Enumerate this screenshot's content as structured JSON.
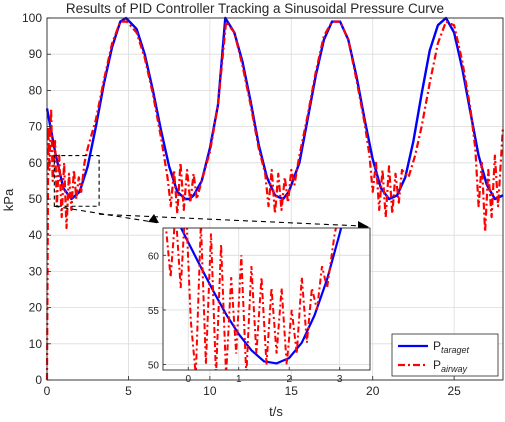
{
  "chart_data": {
    "type": "line",
    "title": "Results of PID Controller Tracking a Sinusoidal Pressure Curve",
    "xlabel": "t/s",
    "ylabel": "kPa",
    "xlim": [
      0,
      28
    ],
    "ylim": [
      0,
      100
    ],
    "xticks": [
      "0",
      "5",
      "10",
      "15",
      "20",
      "25"
    ],
    "yticks": [
      "0",
      "10",
      "20",
      "30",
      "40",
      "50",
      "60",
      "70",
      "80",
      "90",
      "100"
    ],
    "grid": true,
    "legend_position": "bottom-right",
    "series": [
      {
        "name": "P_taraget",
        "legend_main": "P",
        "legend_sub": "taraget",
        "color": "#0000ff",
        "style": "solid",
        "x": [
          0,
          0.5,
          1,
          1.5,
          2,
          2.5,
          3,
          3.5,
          4,
          4.5,
          4.85,
          5.5,
          6,
          6.5,
          7,
          7.5,
          8,
          8.5,
          8.75,
          9,
          9.5,
          10,
          10.5,
          10.95,
          11.5,
          12,
          12.5,
          13,
          13.5,
          14,
          14.5,
          14.85,
          15.5,
          16,
          16.5,
          17,
          17.5,
          18,
          18.5,
          19,
          19.5,
          20,
          20.5,
          21,
          21.5,
          22,
          22.5,
          23,
          23.5,
          24,
          24.5,
          25,
          25.5,
          26,
          26.5,
          27,
          27.5,
          28
        ],
        "y": [
          75,
          63,
          53,
          50,
          52,
          59,
          70,
          82,
          92,
          99,
          100,
          97,
          90,
          80,
          69,
          59,
          52,
          50,
          50,
          51,
          55,
          64,
          76,
          100,
          96,
          88,
          77,
          65,
          56,
          51,
          50,
          52,
          60,
          72,
          84,
          94,
          99,
          99,
          94,
          84,
          72,
          61,
          53,
          50,
          51,
          56,
          66,
          79,
          91,
          98,
          100,
          96,
          86,
          74,
          62,
          54,
          50,
          51
        ]
      },
      {
        "name": "P_airway",
        "legend_main": "P",
        "legend_sub": "airway",
        "color": "#ff0000",
        "style": "dashdot",
        "x": [
          0,
          0.08,
          0.15,
          0.25,
          0.35,
          0.5,
          0.6,
          0.75,
          0.9,
          1.05,
          1.2,
          1.35,
          1.5,
          1.65,
          1.8,
          1.95,
          2.1,
          2.3,
          2.5,
          3,
          3.5,
          4,
          4.5,
          4.9,
          5.5,
          6,
          6.5,
          7,
          7.4,
          7.6,
          7.8,
          8.0,
          8.2,
          8.4,
          8.6,
          8.8,
          9.0,
          9.2,
          9.5,
          10,
          10.5,
          11,
          11.5,
          12,
          12.5,
          13,
          13.4,
          13.6,
          13.8,
          14.0,
          14.2,
          14.4,
          14.6,
          14.8,
          15.0,
          15.2,
          15.5,
          16,
          16.5,
          17,
          17.5,
          18,
          18.5,
          19,
          19.5,
          19.8,
          20.0,
          20.2,
          20.4,
          20.6,
          20.8,
          21.0,
          21.2,
          21.4,
          21.6,
          21.8,
          22.2,
          22.6,
          23,
          23.5,
          24,
          24.5,
          25,
          25.5,
          26,
          26.3,
          26.5,
          26.7,
          26.9,
          27.1,
          27.3,
          27.5,
          27.7,
          28
        ],
        "y": [
          0,
          70,
          58,
          75,
          55,
          66,
          48,
          62,
          45,
          60,
          42,
          57,
          47,
          58,
          50,
          56,
          52,
          60,
          64,
          72,
          83,
          93,
          99,
          99,
          96,
          89,
          79,
          67,
          56,
          48,
          58,
          46,
          60,
          47,
          58,
          49,
          57,
          50,
          55,
          63,
          76,
          99,
          96,
          87,
          76,
          64,
          57,
          48,
          58,
          46,
          57,
          47,
          56,
          49,
          58,
          54,
          62,
          73,
          85,
          95,
          99,
          99,
          94,
          83,
          71,
          62,
          52,
          60,
          47,
          58,
          45,
          59,
          46,
          57,
          49,
          58,
          56,
          62,
          70,
          82,
          93,
          99,
          98,
          88,
          75,
          64,
          48,
          60,
          41,
          58,
          45,
          62,
          48,
          70
        ]
      }
    ],
    "inset": {
      "xlim": [
        -0.5,
        3.6
      ],
      "ylim": [
        49.5,
        62.5
      ],
      "xticks": [
        "0",
        "1",
        "2",
        "3"
      ],
      "yticks": [
        "50",
        "55",
        "60"
      ],
      "target_x": [
        -0.5,
        -0.25,
        0,
        0.25,
        0.5,
        0.75,
        1,
        1.25,
        1.5,
        1.75,
        2,
        2.25,
        2.5,
        2.75,
        3.0,
        3.25
      ],
      "target_y": [
        66,
        63.5,
        61.2,
        58.9,
        56.7,
        54.6,
        52.8,
        51.3,
        50.3,
        50.1,
        50.6,
        52.0,
        54.5,
        57.8,
        62.0,
        66.5
      ],
      "airway_x": [
        -0.45,
        -0.35,
        -0.25,
        -0.15,
        -0.05,
        0.05,
        0.15,
        0.25,
        0.35,
        0.45,
        0.55,
        0.65,
        0.75,
        0.85,
        0.95,
        1.05,
        1.15,
        1.25,
        1.35,
        1.45,
        1.55,
        1.65,
        1.75,
        1.85,
        1.95,
        2.05,
        2.15,
        2.25,
        2.35,
        2.45,
        2.55,
        2.65,
        2.75,
        2.9,
        3.0
      ],
      "airway_y": [
        63,
        58,
        64,
        57,
        65,
        54,
        49,
        63,
        50,
        62,
        49,
        61,
        49,
        58,
        51,
        60,
        49,
        59,
        51,
        58,
        50,
        57,
        51,
        57,
        50,
        55,
        51,
        58,
        52,
        57,
        55,
        59,
        57,
        62,
        64
      ]
    }
  }
}
